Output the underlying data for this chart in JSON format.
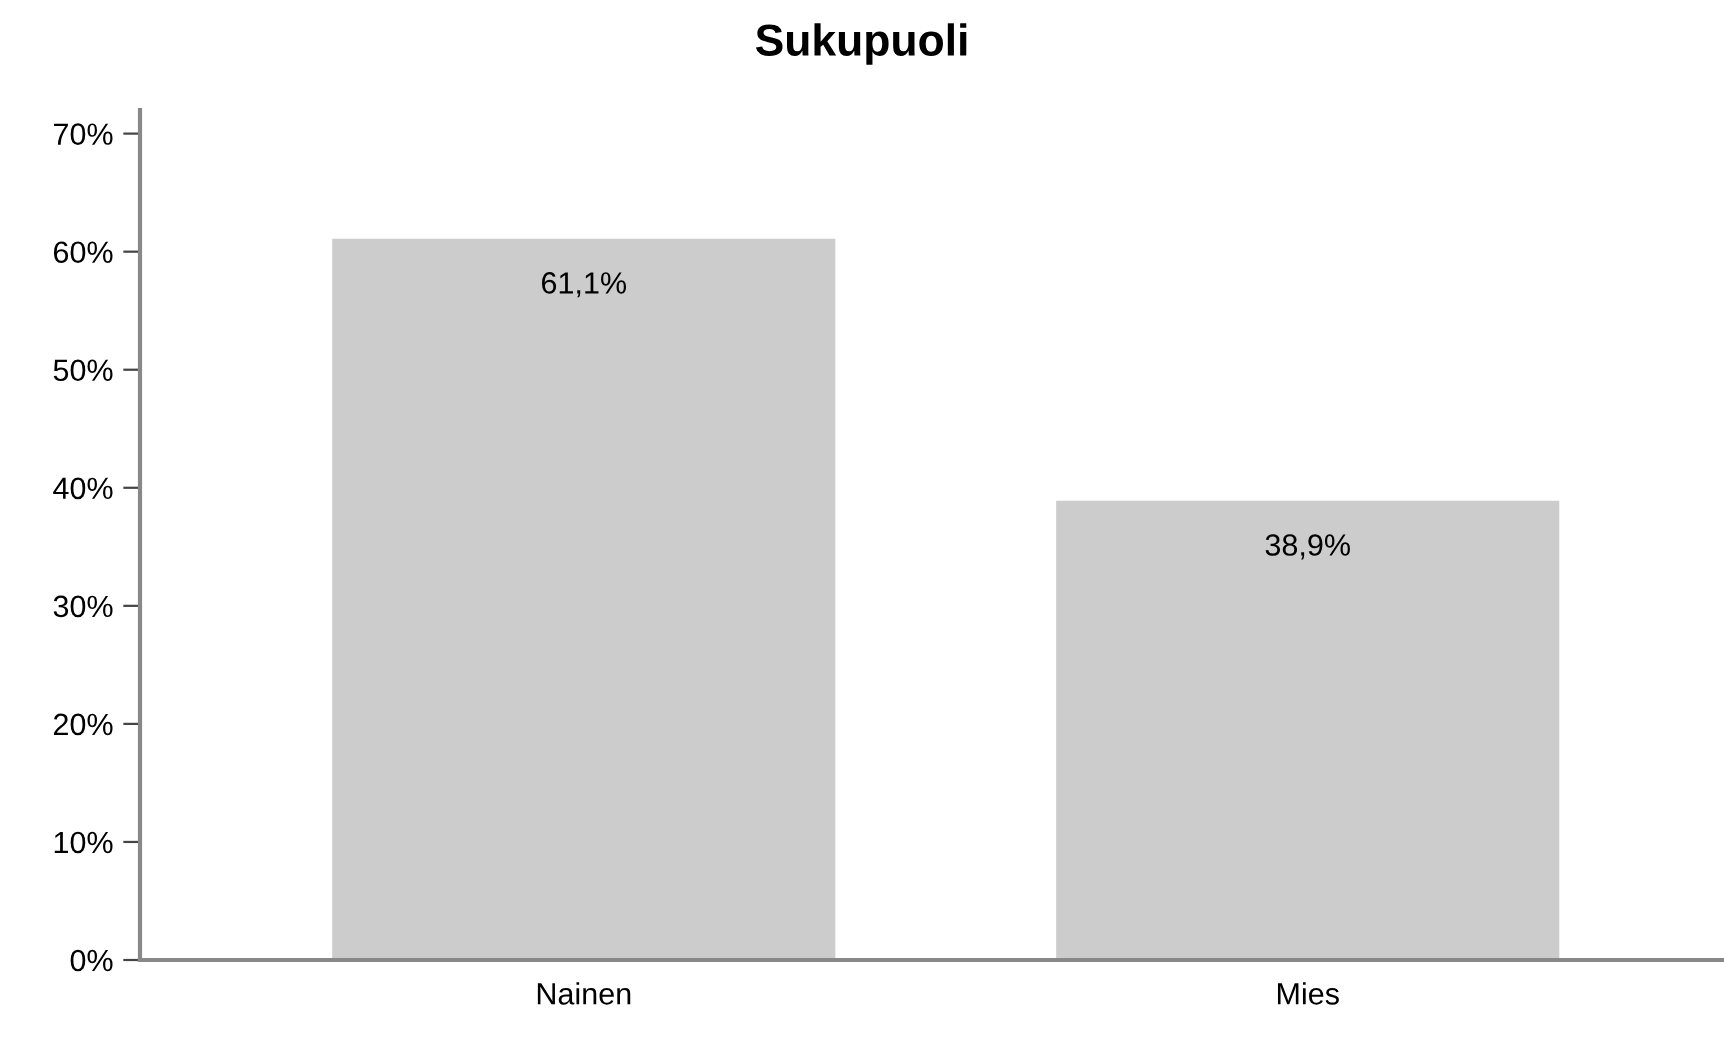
{
  "chart_data": {
    "type": "bar",
    "title": "Sukupuoli",
    "categories": [
      "Nainen",
      "Mies"
    ],
    "values": [
      61.1,
      38.9
    ],
    "value_labels": [
      "61,1%",
      "38,9%"
    ],
    "color": "#cccccc",
    "ylim": [
      0,
      72
    ],
    "yticks": [
      {
        "value": 0,
        "label": "0%"
      },
      {
        "value": 10,
        "label": "10%"
      },
      {
        "value": 20,
        "label": "20%"
      },
      {
        "value": 30,
        "label": "30%"
      },
      {
        "value": 40,
        "label": "40%"
      },
      {
        "value": 50,
        "label": "50%"
      },
      {
        "value": 60,
        "label": "60%"
      },
      {
        "value": 70,
        "label": "70%"
      }
    ],
    "grid": false
  }
}
